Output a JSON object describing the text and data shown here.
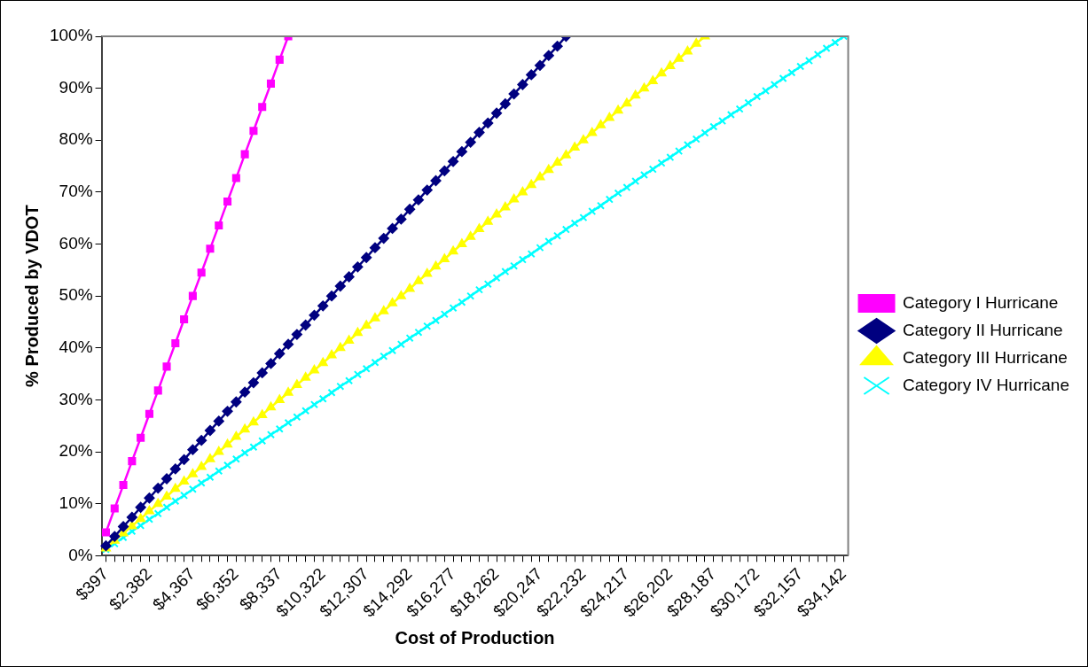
{
  "chart_data": {
    "type": "line",
    "xlabel": "Cost of Production",
    "ylabel": "% Produced by VDOT",
    "categories": [
      "$397",
      null,
      null,
      null,
      null,
      "$2,382",
      null,
      null,
      null,
      null,
      "$4,367",
      null,
      null,
      null,
      null,
      "$6,352",
      null,
      null,
      null,
      null,
      "$8,337",
      null,
      null,
      null,
      null,
      "$10,322",
      null,
      null,
      null,
      null,
      "$12,307",
      null,
      null,
      null,
      null,
      "$14,292",
      null,
      null,
      null,
      null,
      "$16,277",
      null,
      null,
      null,
      null,
      "$18,262",
      null,
      null,
      null,
      null,
      "$20,247",
      null,
      null,
      null,
      null,
      "$22,232",
      null,
      null,
      null,
      null,
      "$24,217",
      null,
      null,
      null,
      null,
      "$26,202",
      null,
      null,
      null,
      null,
      "$28,187",
      null,
      null,
      null,
      null,
      "$30,172",
      null,
      null,
      null,
      null,
      "$32,157",
      null,
      null,
      null,
      null,
      "$34,142"
    ],
    "ylim": [
      0,
      100
    ],
    "yticks": [
      {
        "value": 0,
        "label": "0%"
      },
      {
        "value": 10,
        "label": "10%"
      },
      {
        "value": 20,
        "label": "20%"
      },
      {
        "value": 30,
        "label": "30%"
      },
      {
        "value": 40,
        "label": "40%"
      },
      {
        "value": 50,
        "label": "50%"
      },
      {
        "value": 60,
        "label": "60%"
      },
      {
        "value": 70,
        "label": "70%"
      },
      {
        "value": 80,
        "label": "80%"
      },
      {
        "value": 90,
        "label": "90%"
      },
      {
        "value": 100,
        "label": "100%"
      }
    ],
    "legend": "right",
    "line_style": "solid",
    "series": [
      {
        "name": "Category I Hurricane",
        "color": "#ff00ff",
        "marker": "square",
        "values": [
          4.5,
          9.1,
          13.6,
          18.2,
          22.7,
          27.3,
          31.8,
          36.4,
          40.9,
          45.5,
          50,
          54.5,
          59.1,
          63.6,
          68.2,
          72.7,
          77.3,
          81.8,
          86.4,
          90.9,
          95.5,
          100,
          null,
          null,
          null,
          null,
          null,
          null,
          null,
          null,
          null,
          null,
          null,
          null,
          null,
          null,
          null,
          null,
          null,
          null,
          null,
          null,
          null,
          null,
          null,
          null,
          null,
          null,
          null,
          null,
          null,
          null,
          null,
          null,
          null,
          null,
          null,
          null,
          null,
          null,
          null,
          null,
          null,
          null,
          null,
          null,
          null,
          null,
          null,
          null,
          null,
          null,
          null,
          null,
          null,
          null,
          null,
          null,
          null,
          null,
          null,
          null,
          null,
          null,
          null,
          null
        ]
      },
      {
        "name": "Category II Hurricane",
        "color": "#000080",
        "marker": "diamond",
        "values": [
          1.9,
          3.7,
          5.6,
          7.4,
          9.3,
          11.1,
          13,
          14.8,
          16.7,
          18.5,
          20.4,
          22.2,
          24.1,
          25.9,
          27.8,
          29.6,
          31.5,
          33.3,
          35.2,
          37,
          38.9,
          40.7,
          42.6,
          44.4,
          46.3,
          48.1,
          50,
          51.9,
          53.7,
          55.6,
          57.4,
          59.3,
          61.1,
          63,
          64.8,
          66.7,
          68.5,
          70.4,
          72.2,
          74.1,
          75.9,
          77.8,
          79.6,
          81.5,
          83.3,
          85.2,
          87,
          88.9,
          90.7,
          92.6,
          94.4,
          96.3,
          98.1,
          100,
          null,
          null,
          null,
          null,
          null,
          null,
          null,
          null,
          null,
          null,
          null,
          null,
          null,
          null,
          null,
          null,
          null,
          null,
          null,
          null,
          null,
          null,
          null,
          null,
          null,
          null,
          null,
          null,
          null,
          null,
          null,
          null
        ]
      },
      {
        "name": "Category III Hurricane",
        "color": "#ffff00",
        "marker": "triangle",
        "values": [
          1.4,
          2.9,
          4.3,
          5.7,
          7.1,
          8.6,
          10,
          11.4,
          12.9,
          14.3,
          15.7,
          17.1,
          18.6,
          20,
          21.4,
          22.9,
          24.3,
          25.7,
          27.1,
          28.6,
          30,
          31.4,
          32.9,
          34.3,
          35.7,
          37.1,
          38.6,
          40,
          41.4,
          42.9,
          44.3,
          45.7,
          47.1,
          48.6,
          50,
          51.4,
          52.9,
          54.3,
          55.7,
          57.1,
          58.6,
          60,
          61.4,
          62.9,
          64.3,
          65.7,
          67.1,
          68.6,
          70,
          71.4,
          72.9,
          74.3,
          75.7,
          77.1,
          78.6,
          80,
          81.4,
          82.9,
          84.3,
          85.7,
          87.1,
          88.6,
          90,
          91.4,
          92.9,
          94.3,
          95.7,
          97.1,
          98.6,
          100,
          null,
          null,
          null,
          null,
          null,
          null,
          null,
          null,
          null,
          null,
          null,
          null,
          null,
          null,
          null,
          null
        ]
      },
      {
        "name": "Category IV Hurricane",
        "color": "#00ffff",
        "marker": "cross",
        "values": [
          1.2,
          2.3,
          3.5,
          4.7,
          5.8,
          7,
          8.1,
          9.3,
          10.5,
          11.6,
          12.8,
          14,
          15.1,
          16.3,
          17.4,
          18.6,
          19.8,
          20.9,
          22.1,
          23.3,
          24.4,
          25.6,
          26.7,
          27.9,
          29.1,
          30.2,
          31.4,
          32.6,
          33.7,
          34.9,
          36,
          37.2,
          38.4,
          39.5,
          40.7,
          41.9,
          43,
          44.2,
          45.3,
          46.5,
          47.7,
          48.8,
          50,
          51.2,
          52.3,
          53.5,
          54.7,
          55.8,
          57,
          58.1,
          59.3,
          60.5,
          61.6,
          62.8,
          64,
          65.1,
          66.3,
          67.4,
          68.6,
          69.8,
          70.9,
          72.1,
          73.3,
          74.4,
          75.6,
          76.7,
          77.9,
          79.1,
          80.2,
          81.4,
          82.6,
          83.7,
          84.9,
          86,
          87.2,
          88.4,
          89.5,
          90.7,
          91.9,
          93,
          94.2,
          95.3,
          96.5,
          97.7,
          98.8,
          100
        ]
      }
    ]
  }
}
